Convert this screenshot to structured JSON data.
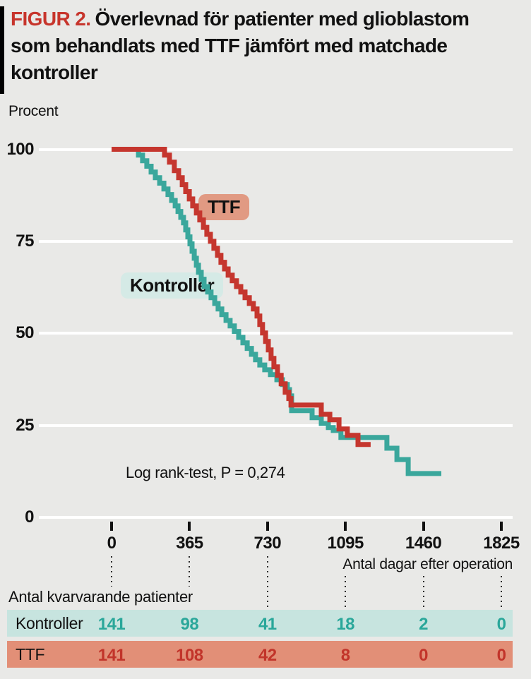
{
  "title": {
    "figure_label": "FIGUR 2.",
    "line1": "Överlevnad för patienter med glioblastom",
    "line2": "som behandlats med TTF jämfört med matchade",
    "line3": "kontroller"
  },
  "chart": {
    "y_axis_caption": "Procent",
    "x_axis_caption": "Antal dagar efter operation",
    "annotation": "Log rank-test, P = 0,274",
    "legend": {
      "ttf_label": "TTF",
      "kontroller_label": "Kontroller"
    }
  },
  "chart_data": {
    "type": "line",
    "subtype": "kaplan-meier-step-survival",
    "title": "Överlevnad för patienter med glioblastom som behandlats med TTF jämfört med matchade kontroller",
    "xlabel": "Antal dagar efter operation",
    "ylabel": "Procent",
    "xlim": [
      0,
      1825
    ],
    "ylim": [
      0,
      100
    ],
    "x_ticks": [
      0,
      365,
      730,
      1095,
      1460,
      1825
    ],
    "y_ticks": [
      100,
      75,
      50,
      25,
      0
    ],
    "grid": "horizontal-white",
    "legend_position": "on-chart-labels",
    "annotation": "Log rank-test, P = 0,274",
    "series": [
      {
        "name": "Kontroller",
        "color": "#3aa79c",
        "points": [
          [
            0,
            100
          ],
          [
            106,
            100
          ],
          [
            126,
            98.4
          ],
          [
            145,
            96.9
          ],
          [
            165,
            95.4
          ],
          [
            185,
            93.8
          ],
          [
            205,
            92.3
          ],
          [
            225,
            90.8
          ],
          [
            245,
            89.2
          ],
          [
            264,
            87.7
          ],
          [
            281,
            86.1
          ],
          [
            298,
            84.6
          ],
          [
            311,
            83.1
          ],
          [
            324,
            81.5
          ],
          [
            337,
            80
          ],
          [
            347,
            78.1
          ],
          [
            357,
            76.2
          ],
          [
            367,
            74.3
          ],
          [
            377,
            72.3
          ],
          [
            387,
            70.4
          ],
          [
            397,
            68.5
          ],
          [
            407,
            66.6
          ],
          [
            420,
            64.7
          ],
          [
            433,
            62.7
          ],
          [
            450,
            61.2
          ],
          [
            466,
            59.7
          ],
          [
            483,
            58.1
          ],
          [
            499,
            56.6
          ],
          [
            516,
            55.1
          ],
          [
            536,
            53.5
          ],
          [
            555,
            52
          ],
          [
            575,
            50.5
          ],
          [
            595,
            48.9
          ],
          [
            615,
            47.4
          ],
          [
            635,
            45.9
          ],
          [
            655,
            44.3
          ],
          [
            674,
            42.8
          ],
          [
            694,
            41.4
          ],
          [
            717,
            40.1
          ],
          [
            744,
            38.8
          ],
          [
            774,
            37.4
          ],
          [
            800,
            36.1
          ],
          [
            823,
            34.7
          ],
          [
            833,
            33
          ],
          [
            843,
            29
          ],
          [
            939,
            27.1
          ],
          [
            982,
            25.5
          ],
          [
            1015,
            24.4
          ],
          [
            1038,
            23.6
          ],
          [
            1074,
            21.7
          ],
          [
            1289,
            18.8
          ],
          [
            1336,
            15.7
          ],
          [
            1389,
            11.9
          ],
          [
            1544,
            11.9
          ]
        ]
      },
      {
        "name": "TTF",
        "color": "#c5362e",
        "points": [
          [
            0,
            100
          ],
          [
            228,
            100
          ],
          [
            248,
            98.4
          ],
          [
            271,
            96.5
          ],
          [
            294,
            94.2
          ],
          [
            314,
            92.3
          ],
          [
            331,
            90.4
          ],
          [
            347,
            88.5
          ],
          [
            364,
            86.5
          ],
          [
            380,
            84.6
          ],
          [
            397,
            82.7
          ],
          [
            413,
            80.8
          ],
          [
            430,
            78.8
          ],
          [
            446,
            76.9
          ],
          [
            463,
            75
          ],
          [
            479,
            73.1
          ],
          [
            496,
            71.2
          ],
          [
            512,
            69.3
          ],
          [
            529,
            67.5
          ],
          [
            546,
            65.8
          ],
          [
            565,
            64.3
          ],
          [
            585,
            62.7
          ],
          [
            605,
            61.2
          ],
          [
            625,
            59.7
          ],
          [
            645,
            58.1
          ],
          [
            664,
            56.6
          ],
          [
            681,
            54.7
          ],
          [
            694,
            52.4
          ],
          [
            707,
            50.1
          ],
          [
            721,
            47.8
          ],
          [
            734,
            45.5
          ],
          [
            747,
            43.2
          ],
          [
            760,
            40.9
          ],
          [
            777,
            38.6
          ],
          [
            794,
            36.3
          ],
          [
            813,
            34
          ],
          [
            830,
            32.3
          ],
          [
            840,
            30.5
          ],
          [
            982,
            28
          ],
          [
            1022,
            26.5
          ],
          [
            1065,
            24
          ],
          [
            1104,
            22.3
          ],
          [
            1154,
            19.8
          ],
          [
            1213,
            19.8
          ]
        ]
      }
    ]
  },
  "risk_table": {
    "heading": "Antal kvarvarande patienter",
    "rows": [
      {
        "label": "Kontroller",
        "values": [
          "141",
          "98",
          "41",
          "18",
          "2",
          "0"
        ],
        "value_color": "#2aa79a",
        "row_bg": "#c7e4df"
      },
      {
        "label": "TTF",
        "values": [
          "141",
          "108",
          "42",
          "8",
          "0",
          "0"
        ],
        "value_color": "#c2342a",
        "row_bg": "#e28f77"
      }
    ]
  },
  "colors": {
    "background": "#e9e9e7",
    "title_accent_red": "#c7352c",
    "ttf_curve": "#c5362e",
    "kontroller_curve": "#3aa79c",
    "ttf_chip_bg": "#e19a83",
    "kontroller_chip_bg": "#d5eae6",
    "gridline": "#ffffff",
    "text": "#111111"
  }
}
